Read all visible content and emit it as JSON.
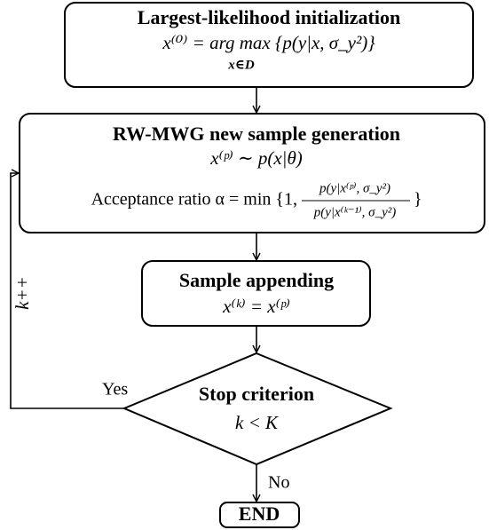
{
  "nodes": [
    {
      "title": "Largest-likelihood initialization",
      "formula": "x⁽⁰⁾ = arg max {p(y|x, σ_y²)}",
      "subscript": "x∈D"
    },
    {
      "title": "RW-MWG new sample generation",
      "formula": "x⁽ᵖ⁾ ∼ p(x|θ)",
      "ratio_label": "Acceptance ratio α = min {1,",
      "numerator": "p(y|x⁽ᵖ⁾, σ_y²)",
      "denominator": "p(y|x⁽ᵏ⁻¹⁾, σ_y²)",
      "ratio_close": "}"
    },
    {
      "title": "Sample appending",
      "formula": "x⁽ᵏ⁾ = x⁽ᵖ⁾"
    },
    {
      "title": "Stop criterion",
      "formula": "k < K"
    },
    {
      "title": "END"
    }
  ],
  "edges": {
    "yes": "Yes",
    "no": "No",
    "loop": "k++"
  }
}
